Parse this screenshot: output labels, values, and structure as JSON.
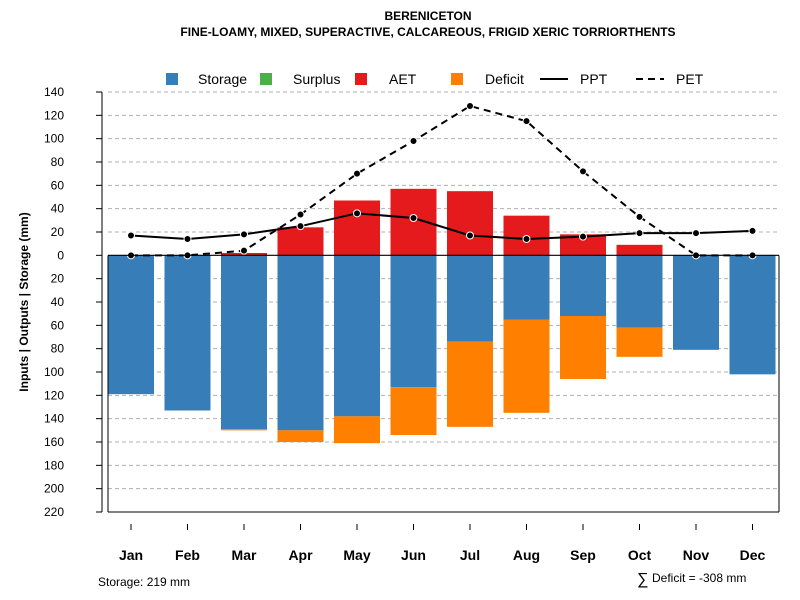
{
  "chart_data": {
    "type": "bar",
    "title": "BERENICETON",
    "subtitle": "FINE-LOAMY, MIXED, SUPERACTIVE, CALCAREOUS, FRIGID XERIC TORRIORTHENTS",
    "ylabel": "Inputs | Outputs | Storage    (mm)",
    "ylim": [
      -220,
      140
    ],
    "y_ticks": [
      140,
      120,
      100,
      80,
      60,
      40,
      20,
      0,
      -20,
      -40,
      -60,
      -80,
      -100,
      -120,
      -140,
      -160,
      -180,
      -200,
      -220
    ],
    "y_tick_labels": [
      "140",
      "120",
      "100",
      "80",
      "60",
      "40",
      "20",
      "0",
      "20",
      "40",
      "60",
      "80",
      "100",
      "120",
      "140",
      "160",
      "180",
      "200",
      "220"
    ],
    "grid": true,
    "categories": [
      "Jan",
      "Feb",
      "Mar",
      "Apr",
      "May",
      "Jun",
      "Jul",
      "Aug",
      "Sep",
      "Oct",
      "Nov",
      "Dec"
    ],
    "series": [
      {
        "name": "Storage",
        "kind": "bar-down",
        "color": "#377EB8",
        "values": [
          119,
          133,
          149,
          150,
          138,
          113,
          74,
          55,
          52,
          62,
          81,
          102
        ]
      },
      {
        "name": "Surplus",
        "kind": "bar-up",
        "color": "#4DAF4A",
        "values": [
          0,
          0,
          0,
          0,
          0,
          0,
          0,
          0,
          0,
          0,
          0,
          0
        ]
      },
      {
        "name": "AET",
        "kind": "bar-up",
        "color": "#E41A1C",
        "values": [
          0,
          0,
          2,
          24,
          47,
          57,
          55,
          34,
          18,
          9,
          0,
          0
        ]
      },
      {
        "name": "Deficit",
        "kind": "bar-down-stacked",
        "color": "#FF7F00",
        "values": [
          0,
          0,
          1,
          10,
          23,
          41,
          73,
          80,
          54,
          25,
          0,
          0
        ]
      },
      {
        "name": "PPT",
        "kind": "line-solid",
        "color": "#000000",
        "values": [
          17,
          14,
          18,
          25,
          36,
          32,
          17,
          14,
          16,
          19,
          19,
          21
        ]
      },
      {
        "name": "PET",
        "kind": "line-dashed",
        "color": "#000000",
        "values": [
          0,
          0,
          4,
          35,
          70,
          98,
          128,
          115,
          72,
          33,
          0,
          0
        ]
      }
    ],
    "legend_position": "top"
  },
  "footer": {
    "storage": "Storage: 219 mm",
    "deficit_symbol": "∑",
    "deficit": "Deficit = -308 mm"
  }
}
